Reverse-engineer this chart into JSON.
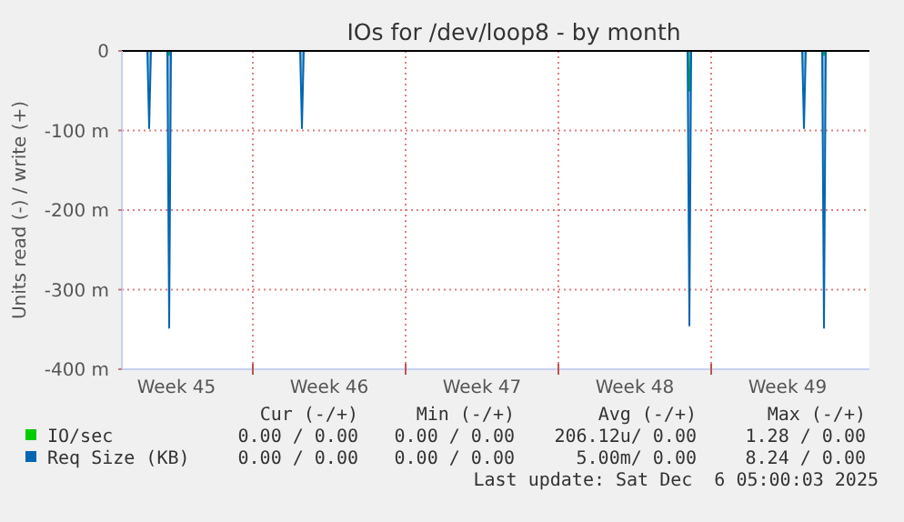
{
  "chart_data": {
    "type": "area",
    "title": "IOs for /dev/loop8 - by month",
    "ylabel": "Units read (-) / write (+)",
    "x": [
      "2025-11-04T00:00",
      "2025-11-05T04:00",
      "2025-11-05T06:00",
      "2025-11-05T08:00",
      "2025-11-06T02:00",
      "2025-11-06T04:00",
      "2025-11-06T06:00",
      "2025-11-12T04:00",
      "2025-11-12T06:00",
      "2025-11-12T08:00",
      "2025-11-29T22:00",
      "2025-11-30T00:00",
      "2025-11-30T02:00",
      "2025-12-05T04:00",
      "2025-12-05T06:00",
      "2025-12-05T08:00",
      "2025-12-06T02:00",
      "2025-12-06T04:00",
      "2025-12-06T06:00",
      "2025-12-08T06:00"
    ],
    "series": [
      {
        "name": "IO/sec",
        "color": "#00cc00",
        "values": [
          0,
          0,
          0,
          0,
          0,
          -5,
          0,
          0,
          0,
          0,
          0,
          -50,
          0,
          0,
          0,
          0,
          0,
          -5,
          0,
          0
        ]
      },
      {
        "name": "Req Size (KB)",
        "color": "#0066b3",
        "values": [
          0,
          0,
          -97,
          0,
          0,
          -348,
          0,
          0,
          -97,
          0,
          0,
          -345,
          0,
          0,
          -97,
          0,
          0,
          -348,
          0,
          0
        ]
      }
    ],
    "xlim": [
      "2025-11-04T00:00",
      "2025-12-08T06:00"
    ],
    "xticks": [
      {
        "value": "2025-11-06T12:00",
        "label": "Week 45"
      },
      {
        "value": "2025-11-10T00:00",
        "label": null
      },
      {
        "value": "2025-11-13T12:00",
        "label": "Week 46"
      },
      {
        "value": "2025-11-17T00:00",
        "label": null
      },
      {
        "value": "2025-11-20T12:00",
        "label": "Week 47"
      },
      {
        "value": "2025-11-24T00:00",
        "label": null
      },
      {
        "value": "2025-11-27T12:00",
        "label": "Week 48"
      },
      {
        "value": "2025-12-01T00:00",
        "label": null
      },
      {
        "value": "2025-12-04T12:00",
        "label": "Week 49"
      }
    ],
    "ylim": [
      -400,
      0
    ],
    "yticks": [
      {
        "value": -400,
        "label": "-400 m"
      },
      {
        "value": -300,
        "label": "-300 m"
      },
      {
        "value": -200,
        "label": "-200 m"
      },
      {
        "value": -100,
        "label": "-100 m"
      },
      0
    ],
    "grid": true,
    "legend": "bottom",
    "annotations": [
      "Cur (-/+)",
      "Min (-/+)",
      "Avg (-/+)",
      "Max (-/+)",
      "0.00 / 0.00",
      "0.00 / 0.00",
      "206.12u/ 0.00",
      "1.28 / 0.00",
      "0.00 / 0.00",
      "0.00 / 0.00",
      "5.00m/ 0.00",
      "8.24 / 0.00",
      "Last update: Sat Dec  6 05:00:03 2025"
    ]
  }
}
